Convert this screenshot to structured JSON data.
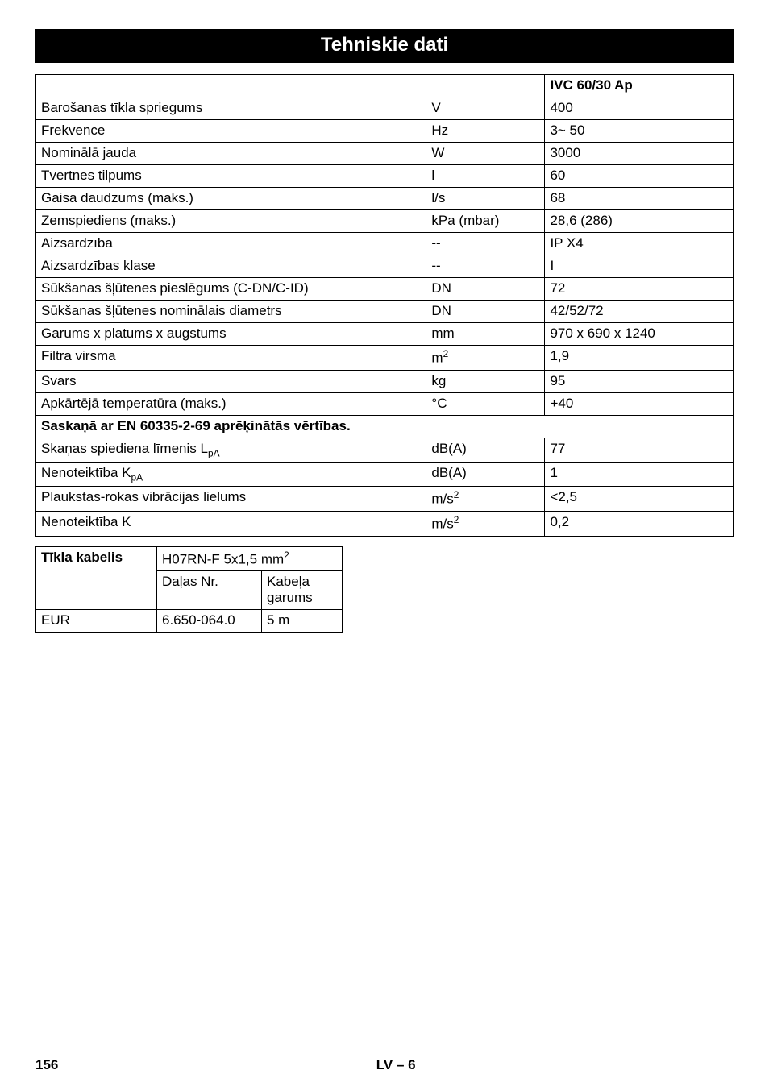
{
  "title": "Tehniskie dati",
  "spec_table": {
    "header_value": "IVC 60/30 Ap",
    "rows": [
      {
        "label": "Barošanas tīkla spriegums",
        "unit": "V",
        "value": "400"
      },
      {
        "label": "Frekvence",
        "unit": "Hz",
        "value": "3~ 50"
      },
      {
        "label": "Nominālā jauda",
        "unit": "W",
        "value": "3000"
      },
      {
        "label": "Tvertnes tilpums",
        "unit": "l",
        "value": "60"
      },
      {
        "label": "Gaisa daudzums (maks.)",
        "unit": "l/s",
        "value": "68"
      },
      {
        "label": "Zemspiediens (maks.)",
        "unit": "kPa (mbar)",
        "value": "28,6 (286)"
      },
      {
        "label": "Aizsardzība",
        "unit": "--",
        "value": "IP X4"
      },
      {
        "label": "Aizsardzības klase",
        "unit": "--",
        "value": "I"
      },
      {
        "label": "Sūkšanas šļūtenes pieslēgums (C-DN/C-ID)",
        "unit": "DN",
        "value": "72"
      },
      {
        "label": "Sūkšanas šļūtenes nominālais diametrs",
        "unit": "DN",
        "value": "42/52/72"
      },
      {
        "label": "Garums x platums x augstums",
        "unit": "mm",
        "value": "970 x 690 x 1240"
      },
      {
        "label": "Filtra virsma",
        "unit_html": "m<sup>2</sup>",
        "value": "1,9"
      },
      {
        "label": "Svars",
        "unit": "kg",
        "value": "95"
      },
      {
        "label": "Apkārtējā temperatūra (maks.)",
        "unit": "°C",
        "value": "+40"
      }
    ],
    "section_heading": "Saskaņā ar EN 60335-2-69 aprēķinātās vērtības.",
    "rows2": [
      {
        "label_html": "Skaņas spiediena līmenis L<sub>pA</sub>",
        "unit": "dB(A)",
        "value": "77"
      },
      {
        "label_html": "Nenoteiktība K<sub>pA</sub>",
        "unit": "dB(A)",
        "value": "1"
      },
      {
        "label": "Plaukstas-rokas vibrācijas lielums",
        "unit_html": "m/s<sup>2</sup>",
        "value": "<2,5"
      },
      {
        "label": "Nenoteiktība K",
        "unit_html": "m/s<sup>2</sup>",
        "value": "0,2"
      }
    ]
  },
  "cable_table": {
    "header_left": "Tīkla kabelis",
    "header_right_html": "H07RN-F 5x1,5 mm<sup>2</sup>",
    "subheaders": {
      "part": "Daļas Nr.",
      "length": "Kabeļa garums"
    },
    "row": {
      "region": "EUR",
      "part": "6.650-064.0",
      "length": "5 m"
    }
  },
  "footer": {
    "page": "156",
    "center": "LV  – 6"
  }
}
